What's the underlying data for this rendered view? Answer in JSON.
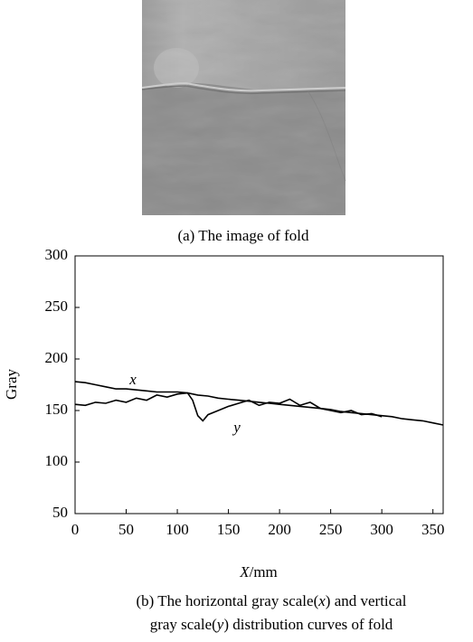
{
  "figure": {
    "caption_a": "(a) The image of fold",
    "caption_b_line1": [
      "(b) The horizontal gray scale(",
      "x",
      ") and vertical"
    ],
    "caption_b_line2": [
      "gray scale(",
      "y",
      ") distribution curves of fold"
    ]
  },
  "chart_data": {
    "type": "line",
    "ylabel": "Gray",
    "xlabel": [
      "X",
      "/mm"
    ],
    "xlim": [
      0,
      360
    ],
    "xticks": [
      0,
      50,
      100,
      150,
      200,
      250,
      300,
      350
    ],
    "ylim": [
      50,
      300
    ],
    "yticks": [
      50,
      100,
      150,
      200,
      250,
      300
    ],
    "series": [
      {
        "name": "x",
        "color": "#000000",
        "x": [
          0,
          10,
          20,
          30,
          40,
          50,
          60,
          70,
          80,
          90,
          100,
          110,
          120,
          130,
          140,
          150,
          160,
          170,
          180,
          190,
          200,
          210,
          220,
          230,
          240,
          250,
          260,
          270,
          280,
          290,
          300,
          310,
          320,
          330,
          340,
          350,
          360
        ],
        "values": [
          178,
          177,
          175,
          173,
          171,
          171,
          170,
          169,
          168,
          168,
          168,
          167,
          165,
          164,
          162,
          161,
          160,
          159,
          158,
          157,
          156,
          155,
          154,
          153,
          152,
          151,
          149,
          148,
          147,
          146,
          145,
          144,
          142,
          141,
          140,
          138,
          136
        ]
      },
      {
        "name": "y",
        "color": "#000000",
        "x": [
          0,
          10,
          20,
          30,
          40,
          50,
          60,
          70,
          80,
          90,
          100,
          110,
          115,
          120,
          125,
          130,
          140,
          150,
          160,
          170,
          180,
          190,
          200,
          210,
          220,
          230,
          240,
          250,
          260,
          270,
          280,
          290,
          300
        ],
        "values": [
          156,
          155,
          158,
          157,
          160,
          158,
          162,
          160,
          165,
          163,
          166,
          167,
          160,
          145,
          140,
          146,
          150,
          154,
          157,
          160,
          155,
          158,
          157,
          161,
          155,
          158,
          152,
          150,
          148,
          150,
          146,
          147,
          144
        ]
      }
    ]
  }
}
